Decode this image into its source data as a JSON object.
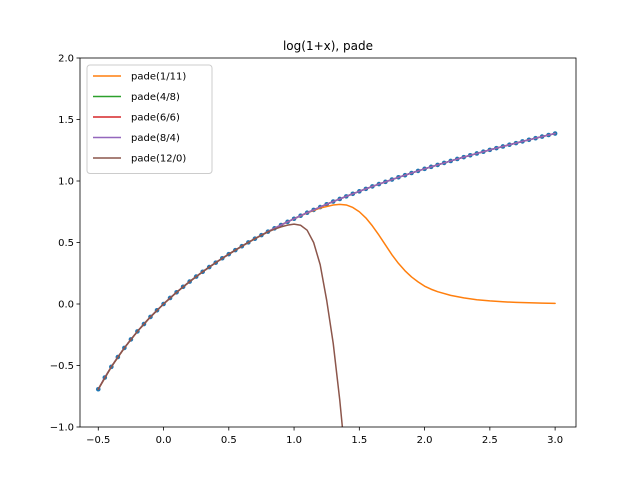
{
  "chart_data": {
    "type": "line",
    "title": "log(1+x), pade",
    "xlabel": "",
    "ylabel": "",
    "xlim": [
      -0.64,
      3.16
    ],
    "ylim": [
      -1.0,
      2.0
    ],
    "xticks": [
      -0.5,
      0.0,
      0.5,
      1.0,
      1.5,
      2.0,
      2.5,
      3.0
    ],
    "xtick_labels": [
      "−0.5",
      "0.0",
      "0.5",
      "1.0",
      "1.5",
      "2.0",
      "2.5",
      "3.0"
    ],
    "yticks": [
      -1.0,
      -0.5,
      0.0,
      0.5,
      1.0,
      1.5,
      2.0
    ],
    "ytick_labels": [
      "−1.0",
      "−0.5",
      "0.0",
      "0.5",
      "1.0",
      "1.5",
      "2.0"
    ],
    "grid": false,
    "legend_position": "top-left",
    "reference_points": {
      "color": "#1f77b4",
      "x": [
        -0.5,
        -0.45,
        -0.4,
        -0.35,
        -0.3,
        -0.25,
        -0.2,
        -0.15,
        -0.1,
        -0.05,
        0.0,
        0.05,
        0.1,
        0.15,
        0.2,
        0.25,
        0.3,
        0.35,
        0.4,
        0.45,
        0.5,
        0.55,
        0.6,
        0.65,
        0.7,
        0.75,
        0.8,
        0.85,
        0.9,
        0.95,
        1.0,
        1.05,
        1.1,
        1.15,
        1.2,
        1.25,
        1.3,
        1.35,
        1.4,
        1.45,
        1.5,
        1.55,
        1.6,
        1.65,
        1.7,
        1.75,
        1.8,
        1.85,
        1.9,
        1.95,
        2.0,
        2.05,
        2.1,
        2.15,
        2.2,
        2.25,
        2.3,
        2.35,
        2.4,
        2.45,
        2.5,
        2.55,
        2.6,
        2.65,
        2.7,
        2.75,
        2.8,
        2.85,
        2.9,
        2.95,
        3.0
      ],
      "y": [
        -0.693,
        -0.598,
        -0.511,
        -0.431,
        -0.357,
        -0.288,
        -0.223,
        -0.163,
        -0.105,
        -0.051,
        0.0,
        0.049,
        0.095,
        0.14,
        0.182,
        0.223,
        0.262,
        0.3,
        0.336,
        0.372,
        0.405,
        0.438,
        0.47,
        0.501,
        0.531,
        0.56,
        0.588,
        0.615,
        0.642,
        0.668,
        0.693,
        0.718,
        0.742,
        0.765,
        0.788,
        0.811,
        0.833,
        0.854,
        0.875,
        0.896,
        0.916,
        0.936,
        0.956,
        0.975,
        0.993,
        1.012,
        1.03,
        1.047,
        1.065,
        1.082,
        1.099,
        1.115,
        1.131,
        1.147,
        1.163,
        1.179,
        1.194,
        1.209,
        1.224,
        1.238,
        1.253,
        1.267,
        1.281,
        1.295,
        1.308,
        1.322,
        1.335,
        1.348,
        1.361,
        1.374,
        1.386
      ]
    },
    "series": [
      {
        "name": "pade(1/11)",
        "color": "#ff7f0e",
        "x": [
          -0.5,
          -0.4,
          -0.3,
          -0.2,
          -0.1,
          0.0,
          0.1,
          0.2,
          0.3,
          0.4,
          0.5,
          0.6,
          0.7,
          0.8,
          0.9,
          1.0,
          1.1,
          1.2,
          1.3,
          1.35,
          1.4,
          1.45,
          1.5,
          1.55,
          1.6,
          1.65,
          1.7,
          1.75,
          1.8,
          1.85,
          1.9,
          1.95,
          2.0,
          2.05,
          2.1,
          2.2,
          2.3,
          2.4,
          2.5,
          2.6,
          2.7,
          2.8,
          2.9,
          3.0
        ],
        "y": [
          -0.693,
          -0.511,
          -0.357,
          -0.223,
          -0.105,
          0.0,
          0.095,
          0.182,
          0.262,
          0.336,
          0.405,
          0.47,
          0.531,
          0.588,
          0.642,
          0.693,
          0.74,
          0.78,
          0.805,
          0.81,
          0.805,
          0.785,
          0.75,
          0.7,
          0.635,
          0.56,
          0.48,
          0.4,
          0.33,
          0.27,
          0.22,
          0.18,
          0.145,
          0.12,
          0.1,
          0.07,
          0.05,
          0.035,
          0.025,
          0.018,
          0.013,
          0.01,
          0.007,
          0.005
        ]
      },
      {
        "name": "pade(4/8)",
        "color": "#2ca02c",
        "x": [
          -0.5,
          -0.45,
          -0.4,
          -0.35,
          -0.3,
          -0.25,
          -0.2,
          -0.15,
          -0.1,
          -0.05,
          0.0,
          0.05,
          0.1,
          0.15,
          0.2,
          0.25,
          0.3,
          0.35,
          0.4,
          0.45,
          0.5,
          0.55,
          0.6,
          0.65,
          0.7,
          0.75,
          0.8,
          0.85,
          0.9,
          0.95,
          1.0,
          1.05,
          1.1,
          1.15,
          1.2,
          1.25,
          1.3,
          1.35,
          1.4,
          1.45,
          1.5,
          1.55,
          1.6,
          1.65,
          1.7,
          1.75,
          1.8,
          1.85,
          1.9,
          1.95,
          2.0,
          2.05,
          2.1,
          2.15,
          2.2,
          2.25,
          2.3,
          2.35,
          2.4,
          2.45,
          2.5,
          2.55,
          2.6,
          2.65,
          2.7,
          2.75,
          2.8,
          2.85,
          2.9,
          2.95,
          3.0
        ],
        "y": [
          -0.693,
          -0.598,
          -0.511,
          -0.431,
          -0.357,
          -0.288,
          -0.223,
          -0.163,
          -0.105,
          -0.051,
          0.0,
          0.049,
          0.095,
          0.14,
          0.182,
          0.223,
          0.262,
          0.3,
          0.336,
          0.372,
          0.405,
          0.438,
          0.47,
          0.501,
          0.531,
          0.56,
          0.588,
          0.615,
          0.642,
          0.668,
          0.693,
          0.718,
          0.742,
          0.765,
          0.788,
          0.811,
          0.833,
          0.854,
          0.875,
          0.896,
          0.916,
          0.936,
          0.956,
          0.975,
          0.993,
          1.012,
          1.03,
          1.047,
          1.065,
          1.082,
          1.099,
          1.115,
          1.131,
          1.147,
          1.163,
          1.179,
          1.194,
          1.209,
          1.224,
          1.238,
          1.253,
          1.267,
          1.281,
          1.295,
          1.308,
          1.322,
          1.335,
          1.348,
          1.361,
          1.374,
          1.386
        ]
      },
      {
        "name": "pade(6/6)",
        "color": "#d62728",
        "x": [
          -0.5,
          -0.45,
          -0.4,
          -0.35,
          -0.3,
          -0.25,
          -0.2,
          -0.15,
          -0.1,
          -0.05,
          0.0,
          0.05,
          0.1,
          0.15,
          0.2,
          0.25,
          0.3,
          0.35,
          0.4,
          0.45,
          0.5,
          0.55,
          0.6,
          0.65,
          0.7,
          0.75,
          0.8,
          0.85,
          0.9,
          0.95,
          1.0,
          1.05,
          1.1,
          1.15,
          1.2,
          1.25,
          1.3,
          1.35,
          1.4,
          1.45,
          1.5,
          1.55,
          1.6,
          1.65,
          1.7,
          1.75,
          1.8,
          1.85,
          1.9,
          1.95,
          2.0,
          2.05,
          2.1,
          2.15,
          2.2,
          2.25,
          2.3,
          2.35,
          2.4,
          2.45,
          2.5,
          2.55,
          2.6,
          2.65,
          2.7,
          2.75,
          2.8,
          2.85,
          2.9,
          2.95,
          3.0
        ],
        "y": [
          -0.693,
          -0.598,
          -0.511,
          -0.431,
          -0.357,
          -0.288,
          -0.223,
          -0.163,
          -0.105,
          -0.051,
          0.0,
          0.049,
          0.095,
          0.14,
          0.182,
          0.223,
          0.262,
          0.3,
          0.336,
          0.372,
          0.405,
          0.438,
          0.47,
          0.501,
          0.531,
          0.56,
          0.588,
          0.615,
          0.642,
          0.668,
          0.693,
          0.718,
          0.742,
          0.765,
          0.788,
          0.811,
          0.833,
          0.854,
          0.875,
          0.896,
          0.916,
          0.936,
          0.956,
          0.975,
          0.993,
          1.012,
          1.03,
          1.047,
          1.065,
          1.082,
          1.099,
          1.115,
          1.131,
          1.147,
          1.163,
          1.179,
          1.194,
          1.209,
          1.224,
          1.238,
          1.253,
          1.267,
          1.281,
          1.295,
          1.308,
          1.322,
          1.335,
          1.348,
          1.361,
          1.374,
          1.386
        ]
      },
      {
        "name": "pade(8/4)",
        "color": "#9467bd",
        "x": [
          -0.5,
          -0.45,
          -0.4,
          -0.35,
          -0.3,
          -0.25,
          -0.2,
          -0.15,
          -0.1,
          -0.05,
          0.0,
          0.05,
          0.1,
          0.15,
          0.2,
          0.25,
          0.3,
          0.35,
          0.4,
          0.45,
          0.5,
          0.55,
          0.6,
          0.65,
          0.7,
          0.75,
          0.8,
          0.85,
          0.9,
          0.95,
          1.0,
          1.05,
          1.1,
          1.15,
          1.2,
          1.25,
          1.3,
          1.35,
          1.4,
          1.45,
          1.5,
          1.55,
          1.6,
          1.65,
          1.7,
          1.75,
          1.8,
          1.85,
          1.9,
          1.95,
          2.0,
          2.05,
          2.1,
          2.15,
          2.2,
          2.25,
          2.3,
          2.35,
          2.4,
          2.45,
          2.5,
          2.55,
          2.6,
          2.65,
          2.7,
          2.75,
          2.8,
          2.85,
          2.9,
          2.95,
          3.0
        ],
        "y": [
          -0.693,
          -0.598,
          -0.511,
          -0.431,
          -0.357,
          -0.288,
          -0.223,
          -0.163,
          -0.105,
          -0.051,
          0.0,
          0.049,
          0.095,
          0.14,
          0.182,
          0.223,
          0.262,
          0.3,
          0.336,
          0.372,
          0.405,
          0.438,
          0.47,
          0.501,
          0.531,
          0.56,
          0.588,
          0.615,
          0.642,
          0.668,
          0.693,
          0.718,
          0.742,
          0.765,
          0.788,
          0.811,
          0.833,
          0.854,
          0.875,
          0.896,
          0.916,
          0.936,
          0.956,
          0.975,
          0.993,
          1.012,
          1.03,
          1.047,
          1.065,
          1.082,
          1.099,
          1.115,
          1.131,
          1.147,
          1.163,
          1.179,
          1.194,
          1.209,
          1.224,
          1.238,
          1.253,
          1.267,
          1.281,
          1.295,
          1.308,
          1.322,
          1.335,
          1.348,
          1.361,
          1.374,
          1.386
        ]
      },
      {
        "name": "pade(12/0)",
        "color": "#8c564b",
        "x": [
          -0.5,
          -0.4,
          -0.3,
          -0.2,
          -0.1,
          0.0,
          0.1,
          0.2,
          0.3,
          0.4,
          0.5,
          0.6,
          0.7,
          0.8,
          0.85,
          0.9,
          0.95,
          1.0,
          1.05,
          1.1,
          1.15,
          1.2,
          1.25,
          1.3,
          1.35,
          1.37
        ],
        "y": [
          -0.693,
          -0.511,
          -0.357,
          -0.223,
          -0.105,
          0.0,
          0.095,
          0.182,
          0.262,
          0.336,
          0.405,
          0.47,
          0.531,
          0.586,
          0.608,
          0.627,
          0.641,
          0.649,
          0.64,
          0.6,
          0.5,
          0.32,
          0.03,
          -0.32,
          -0.78,
          -1.0
        ]
      }
    ]
  }
}
